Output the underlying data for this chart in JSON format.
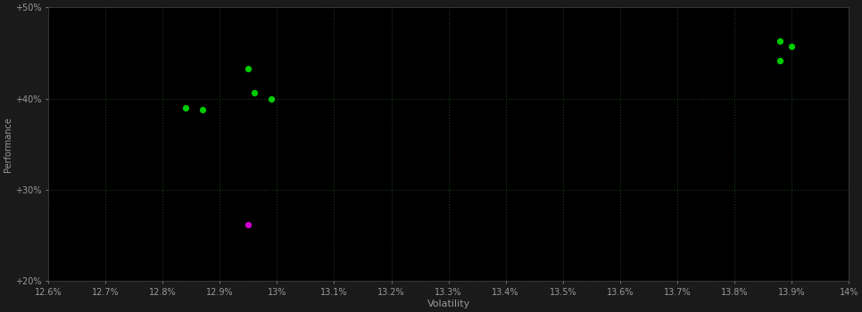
{
  "background_color": "#1a1a1a",
  "plot_bg_color": "#000000",
  "grid_color": "#1a3a1a",
  "grid_style": ":",
  "xlabel": "Volatility",
  "ylabel": "Performance",
  "xlim": [
    0.126,
    0.14
  ],
  "ylim": [
    0.2,
    0.5
  ],
  "xtick_labels": [
    "12.6%",
    "12.7%",
    "12.8%",
    "12.9%",
    "13%",
    "13.1%",
    "13.2%",
    "13.3%",
    "13.4%",
    "13.5%",
    "13.6%",
    "13.7%",
    "13.8%",
    "13.9%",
    "14%"
  ],
  "xtick_vals": [
    0.126,
    0.127,
    0.128,
    0.129,
    0.13,
    0.131,
    0.132,
    0.133,
    0.134,
    0.135,
    0.136,
    0.137,
    0.138,
    0.139,
    0.14
  ],
  "ytick_labels": [
    "+20%",
    "+30%",
    "+40%",
    "+50%"
  ],
  "ytick_vals": [
    0.2,
    0.3,
    0.4,
    0.5
  ],
  "green_points": [
    [
      0.1284,
      0.39
    ],
    [
      0.1287,
      0.388
    ],
    [
      0.1295,
      0.433
    ],
    [
      0.1296,
      0.406
    ],
    [
      0.1299,
      0.4
    ],
    [
      0.1388,
      0.463
    ],
    [
      0.139,
      0.457
    ],
    [
      0.1388,
      0.442
    ]
  ],
  "magenta_points": [
    [
      0.1295,
      0.262
    ]
  ],
  "green_color": "#00cc00",
  "magenta_color": "#cc00cc",
  "marker_size": 18,
  "tick_color": "#999999",
  "axis_color": "#444444",
  "xlabel_fontsize": 8,
  "ylabel_fontsize": 7,
  "tick_fontsize": 7
}
